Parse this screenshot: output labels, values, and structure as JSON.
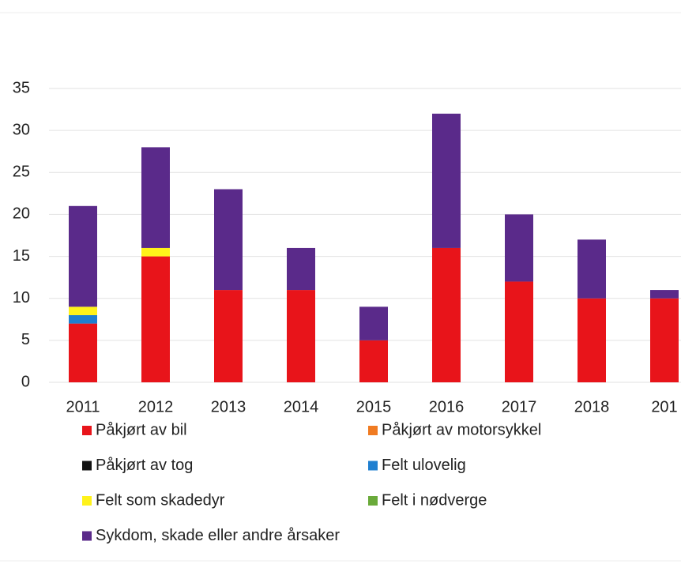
{
  "chart_data": {
    "type": "stacked_bar",
    "categories": [
      "2011",
      "2012",
      "2013",
      "2014",
      "2015",
      "2016",
      "2017",
      "2018",
      "201"
    ],
    "series": [
      {
        "name": "Påkjørt av bil",
        "color": "#e8141a",
        "values": [
          7,
          15,
          11,
          11,
          5,
          16,
          12,
          10,
          10
        ]
      },
      {
        "name": "Påkjørt av motorsykkel",
        "color": "#f07b22",
        "values": [
          0,
          0,
          0,
          0,
          0,
          0,
          0,
          0,
          0
        ]
      },
      {
        "name": "Påkjørt av tog",
        "color": "#111111",
        "values": [
          0,
          0,
          0,
          0,
          0,
          0,
          0,
          0,
          0
        ]
      },
      {
        "name": "Felt ulovelig",
        "color": "#1f7fd0",
        "values": [
          1,
          0,
          0,
          0,
          0,
          0,
          0,
          0,
          0
        ]
      },
      {
        "name": "Felt som skadedyr",
        "color": "#fff21a",
        "values": [
          1,
          1,
          0,
          0,
          0,
          0,
          0,
          0,
          0
        ]
      },
      {
        "name": "Felt i nødverge",
        "color": "#6aaa3a",
        "values": [
          0,
          0,
          0,
          0,
          0,
          0,
          0,
          0,
          0
        ]
      },
      {
        "name": "Sykdom, skade eller andre årsaker",
        "color": "#5a2a8a",
        "values": [
          12,
          12,
          12,
          5,
          4,
          16,
          8,
          7,
          1
        ]
      }
    ],
    "ylim": [
      0,
      35
    ],
    "yticks": [
      0,
      5,
      10,
      15,
      20,
      25,
      30,
      35
    ],
    "grid": true,
    "legend": "bottom"
  }
}
